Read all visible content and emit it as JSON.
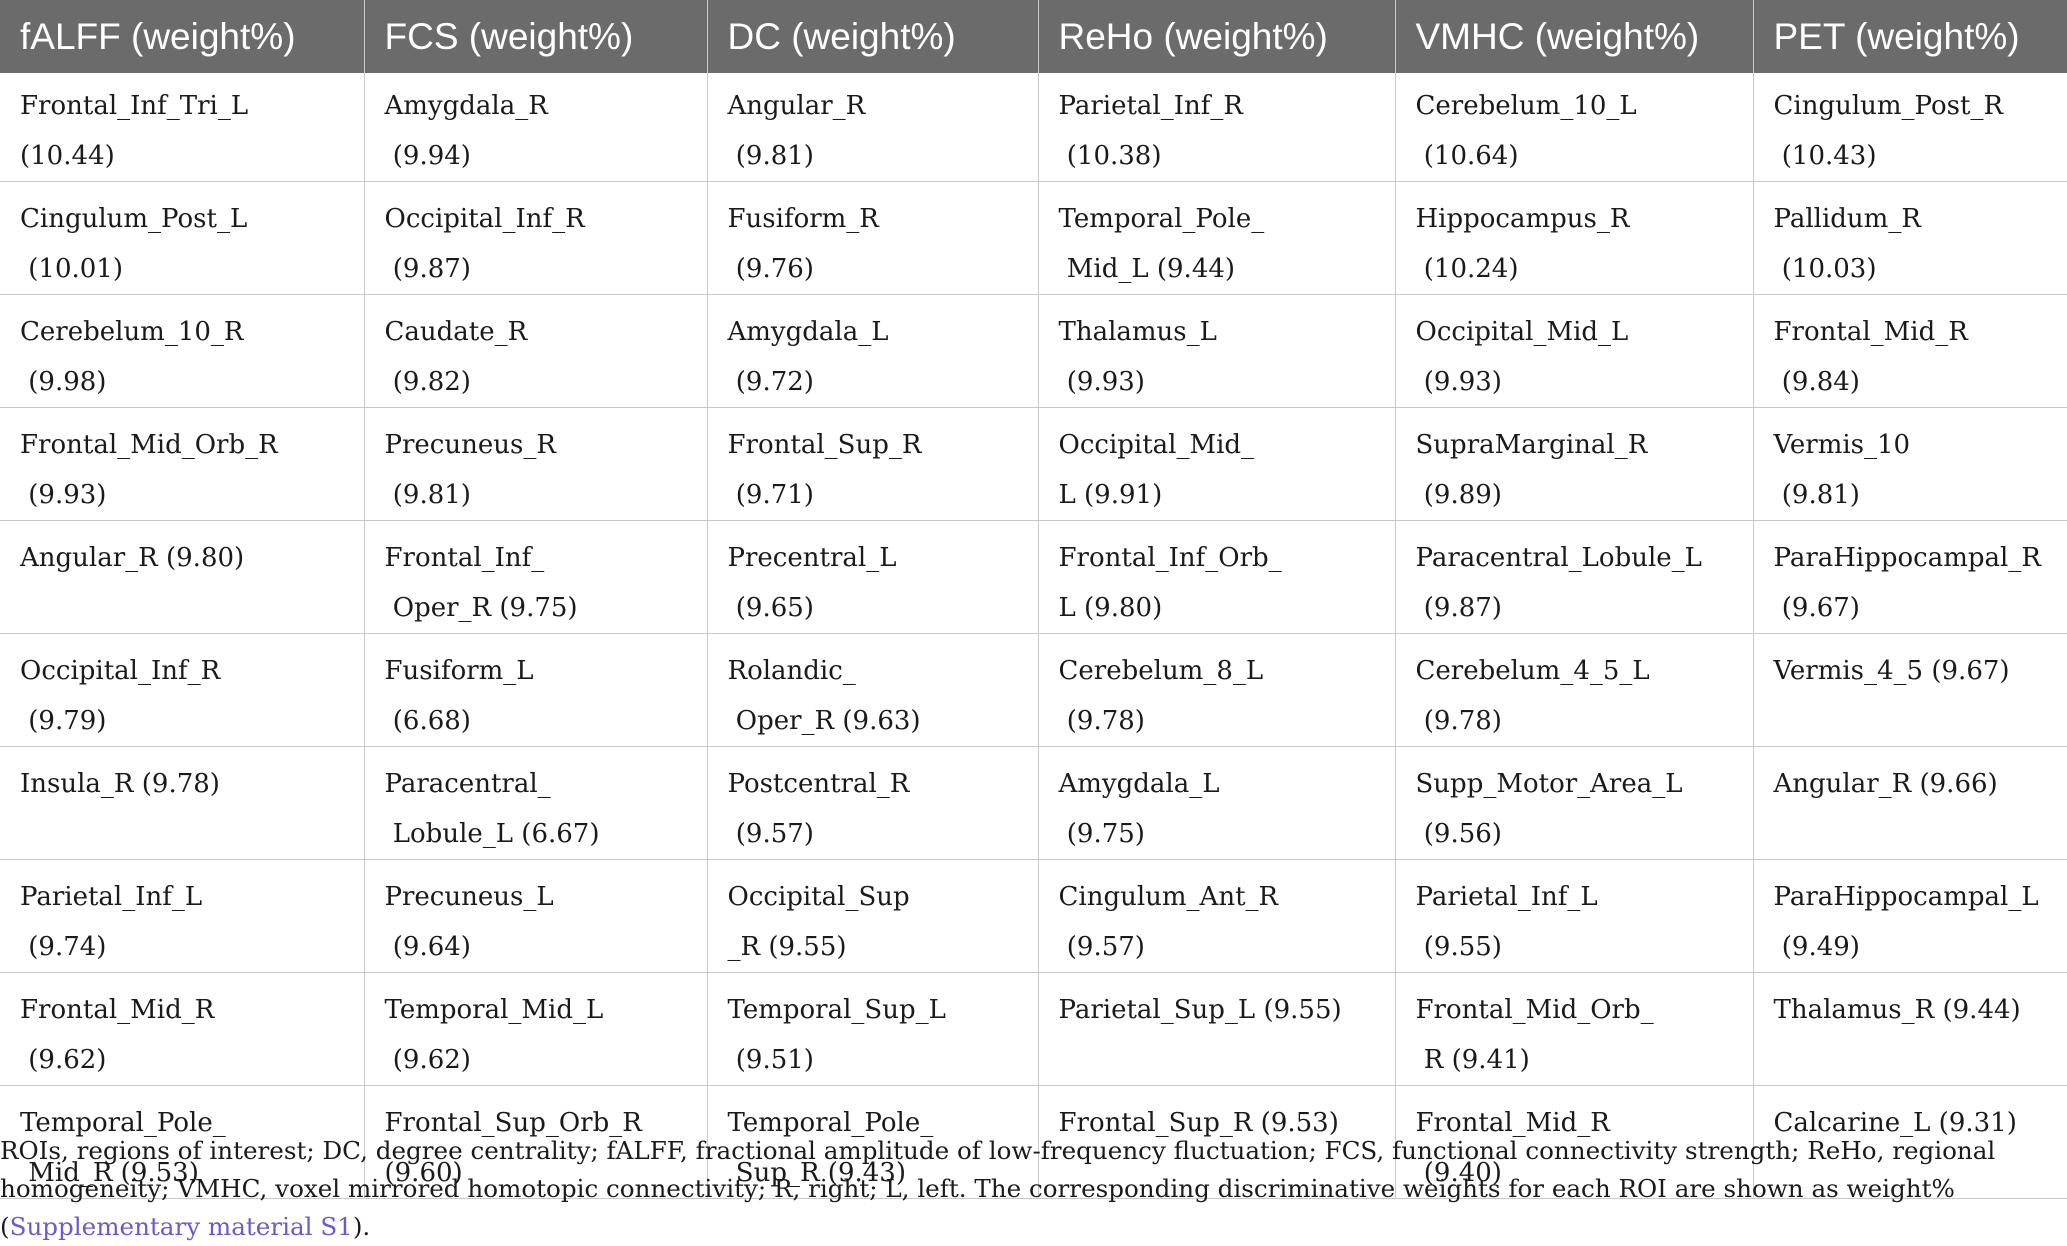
{
  "table": {
    "headers": [
      "fALFF (weight%)",
      "FCS (weight%)",
      "DC (weight%)",
      "ReHo (weight%)",
      "VMHC (weight%)",
      "PET (weight%)"
    ],
    "rows": [
      [
        "Frontal_Inf_Tri_L\n(10.44)",
        "Amygdala_R\n (9.94)",
        "Angular_R\n (9.81)",
        "Parietal_Inf_R\n (10.38)",
        "Cerebelum_10_L\n (10.64)",
        "Cingulum_Post_R\n (10.43)"
      ],
      [
        "Cingulum_Post_L\n (10.01)",
        "Occipital_Inf_R\n (9.87)",
        "Fusiform_R\n (9.76)",
        "Temporal_Pole_\n Mid_L (9.44)",
        "Hippocampus_R\n (10.24)",
        "Pallidum_R\n (10.03)"
      ],
      [
        "Cerebelum_10_R\n (9.98)",
        "Caudate_R\n (9.82)",
        "Amygdala_L\n (9.72)",
        "Thalamus_L\n (9.93)",
        "Occipital_Mid_L\n (9.93)",
        "Frontal_Mid_R\n (9.84)"
      ],
      [
        "Frontal_Mid_Orb_R\n (9.93)",
        "Precuneus_R\n (9.81)",
        "Frontal_Sup_R\n (9.71)",
        "Occipital_Mid_\nL (9.91)",
        "SupraMarginal_R\n (9.89)",
        "Vermis_10\n (9.81)"
      ],
      [
        "Angular_R (9.80)",
        "Frontal_Inf_\n Oper_R (9.75)",
        "Precentral_L\n (9.65)",
        "Frontal_Inf_Orb_\nL (9.80)",
        "Paracentral_Lobule_L\n (9.87)",
        "ParaHippocampal_R\n (9.67)"
      ],
      [
        "Occipital_Inf_R\n (9.79)",
        "Fusiform_L\n (6.68)",
        "Rolandic_\n Oper_R (9.63)",
        "Cerebelum_8_L\n (9.78)",
        "Cerebelum_4_5_L\n (9.78)",
        "Vermis_4_5 (9.67)"
      ],
      [
        "Insula_R (9.78)",
        "Paracentral_\n Lobule_L (6.67)",
        "Postcentral_R\n (9.57)",
        "Amygdala_L\n (9.75)",
        "Supp_Motor_Area_L\n (9.56)",
        "Angular_R (9.66)"
      ],
      [
        "Parietal_Inf_L\n (9.74)",
        "Precuneus_L\n (9.64)",
        "Occipital_Sup\n_R (9.55)",
        "Cingulum_Ant_R\n (9.57)",
        "Parietal_Inf_L\n (9.55)",
        "ParaHippocampal_L\n (9.49)"
      ],
      [
        "Frontal_Mid_R\n (9.62)",
        "Temporal_Mid_L\n (9.62)",
        "Temporal_Sup_L\n (9.51)",
        "Parietal_Sup_L (9.55)",
        "Frontal_Mid_Orb_\n R (9.41)",
        "Thalamus_R (9.44)"
      ],
      [
        "Temporal_Pole_\n Mid_R (9.53)",
        "Frontal_Sup_Orb_R\n(9.60)",
        "Temporal_Pole_\n Sup_R (9.43)",
        "Frontal_Sup_R (9.53)",
        "Frontal_Mid_R\n (9.40)",
        "Calcarine_L (9.31)"
      ]
    ]
  },
  "footnote": {
    "text": "ROIs, regions of interest; DC, degree centrality; fALFF, fractional amplitude of low-frequency fluctuation; FCS, functional connectivity strength; ReHo, regional homogeneity; VMHC, voxel mirrored homotopic connectivity; R, right; L, left. The corresponding discriminative weights for each ROI are shown as weight% (",
    "link_text": "Supplementary material S1",
    "closing": ")."
  },
  "colors": {
    "header_background": "#6b6b6b",
    "header_text": "#ffffff",
    "grid_line": "#c9c9c9",
    "link": "#6a5acd"
  }
}
